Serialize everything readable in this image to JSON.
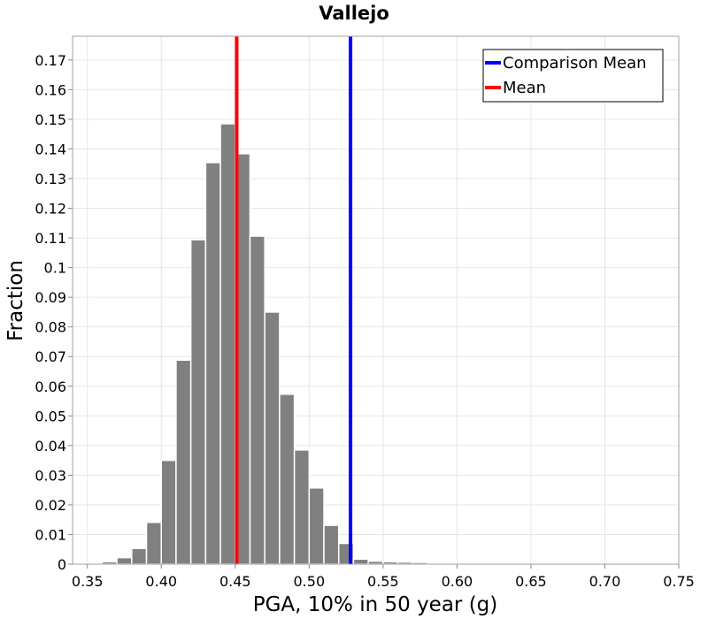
{
  "chart_data": {
    "type": "bar",
    "title": "Vallejo",
    "xlabel": "PGA, 10% in 50 year (g)",
    "ylabel": "Fraction",
    "xlim": [
      0.34,
      0.75
    ],
    "ylim": [
      0,
      0.178
    ],
    "bin_width": 0.01,
    "x_ticks": [
      "0.35",
      "0.40",
      "0.45",
      "0.50",
      "0.55",
      "0.60",
      "0.65",
      "0.70",
      "0.75"
    ],
    "y_ticks": [
      "0",
      "0.01",
      "0.02",
      "0.03",
      "0.04",
      "0.05",
      "0.06",
      "0.07",
      "0.08",
      "0.09",
      "0.1",
      "0.11",
      "0.12",
      "0.13",
      "0.14",
      "0.15",
      "0.16",
      "0.17"
    ],
    "x": [
      0.345,
      0.355,
      0.365,
      0.375,
      0.385,
      0.395,
      0.405,
      0.415,
      0.425,
      0.435,
      0.445,
      0.455,
      0.465,
      0.475,
      0.485,
      0.495,
      0.505,
      0.515,
      0.525,
      0.535,
      0.545,
      0.555,
      0.565,
      0.575,
      0.585,
      0.595,
      0.605
    ],
    "values": [
      0.0001,
      0.0003,
      0.0008,
      0.0022,
      0.0053,
      0.0141,
      0.035,
      0.0688,
      0.1094,
      0.1354,
      0.1485,
      0.1384,
      0.1106,
      0.085,
      0.0573,
      0.0385,
      0.0257,
      0.0131,
      0.007,
      0.0017,
      0.001,
      0.0008,
      0.0007,
      0.0006,
      0.0004,
      0.0003,
      0.0001
    ],
    "bar_color": "#808080",
    "vertical_lines": [
      {
        "name": "Comparison Mean",
        "x": 0.528,
        "color": "#0000ff"
      },
      {
        "name": "Mean",
        "x": 0.451,
        "color": "#ff0000"
      }
    ],
    "grid": true,
    "legend_position": "top-right"
  }
}
